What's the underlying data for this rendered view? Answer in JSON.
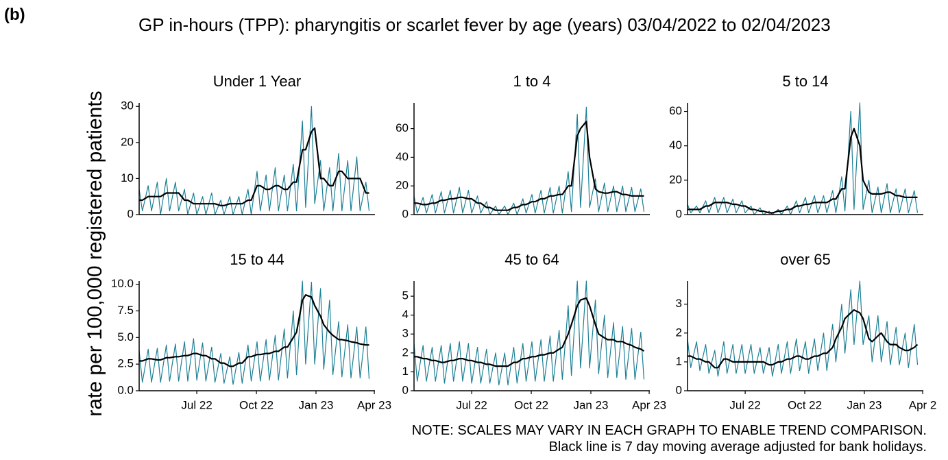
{
  "figure_label": "(b)",
  "title": "GP in-hours (TPP): pharyngitis or scarlet fever by age (years) 03/04/2022 to 02/04/2023",
  "y_label": "rate per 100,000 registered patients",
  "note": "NOTE: SCALES MAY VARY IN EACH GRAPH TO ENABLE TREND COMPARISON.",
  "note2": "Black line is 7 day moving average adjusted for bank holidays.",
  "chart_data": [
    {
      "type": "line",
      "title": "Under 1 Year",
      "x": [
        0,
        5,
        14,
        19,
        28,
        33,
        42,
        47,
        56,
        61,
        70,
        75,
        84,
        89,
        98,
        103,
        112,
        117,
        126,
        131,
        140,
        145,
        154,
        159,
        168,
        173,
        182,
        187,
        196,
        201,
        210,
        215,
        224,
        229,
        238,
        243,
        252,
        257,
        266,
        271,
        280,
        285,
        294,
        299,
        308,
        313,
        322,
        327,
        336,
        341,
        350,
        355
      ],
      "xlim": [
        0,
        364
      ],
      "ylim": [
        0,
        31
      ],
      "yticks": [
        0,
        10,
        20,
        30
      ],
      "series": [
        {
          "color": "#1b7f95",
          "values": [
            7,
            1,
            8,
            1,
            9,
            0,
            10,
            1,
            9,
            1,
            7,
            0,
            6,
            0,
            5,
            0,
            6,
            0,
            4,
            0,
            5,
            0,
            5,
            0,
            7,
            0,
            12,
            1,
            11,
            1,
            13,
            1,
            11,
            1,
            14,
            1,
            26,
            2,
            30,
            3,
            15,
            1,
            13,
            1,
            17,
            1,
            15,
            1,
            16,
            1,
            9,
            1
          ]
        },
        {
          "color": "#000000",
          "values": [
            4,
            4,
            5,
            5,
            5,
            5,
            6,
            6,
            6,
            6,
            4,
            4,
            3,
            3,
            3,
            3,
            3,
            3,
            2.5,
            2.5,
            3,
            3,
            3,
            3,
            4,
            4,
            8,
            8,
            7,
            7,
            8,
            8,
            7,
            7,
            9,
            9,
            18,
            18,
            23,
            24,
            10,
            10,
            8,
            8,
            12,
            12,
            10,
            10,
            10,
            10,
            6,
            6
          ]
        }
      ]
    },
    {
      "type": "line",
      "title": "1 to 4",
      "x": [
        0,
        5,
        14,
        19,
        28,
        33,
        42,
        47,
        56,
        61,
        70,
        75,
        84,
        89,
        98,
        103,
        112,
        117,
        126,
        131,
        140,
        145,
        154,
        159,
        168,
        173,
        182,
        187,
        196,
        201,
        210,
        215,
        224,
        229,
        238,
        243,
        252,
        257,
        266,
        271,
        280,
        285,
        294,
        299,
        308,
        313,
        322,
        327,
        336,
        341,
        350,
        355
      ],
      "xlim": [
        0,
        364
      ],
      "ylim": [
        0,
        78
      ],
      "yticks": [
        0,
        20,
        40,
        60
      ],
      "series": [
        {
          "color": "#1b7f95",
          "values": [
            13,
            1,
            12,
            1,
            14,
            1,
            16,
            1,
            17,
            1,
            19,
            1,
            17,
            1,
            13,
            1,
            9,
            0,
            6,
            0,
            6,
            0,
            8,
            0,
            11,
            1,
            14,
            1,
            17,
            1,
            19,
            1,
            20,
            1,
            30,
            2,
            70,
            5,
            75,
            5,
            25,
            2,
            22,
            2,
            20,
            2,
            20,
            2,
            19,
            2,
            18,
            2
          ]
        },
        {
          "color": "#000000",
          "values": [
            8,
            8,
            7,
            7,
            8,
            8,
            10,
            10,
            11,
            11,
            12,
            12,
            11,
            11,
            8,
            8,
            5,
            5,
            3,
            3,
            3,
            3,
            5,
            5,
            7,
            7,
            9,
            9,
            11,
            11,
            13,
            13,
            14,
            14,
            20,
            20,
            55,
            60,
            65,
            40,
            18,
            16,
            15,
            15,
            16,
            16,
            14,
            14,
            13,
            13,
            13,
            13
          ]
        }
      ]
    },
    {
      "type": "line",
      "title": "5 to 14",
      "x": [
        0,
        5,
        14,
        19,
        28,
        33,
        42,
        47,
        56,
        61,
        70,
        75,
        84,
        89,
        98,
        103,
        112,
        117,
        126,
        131,
        140,
        145,
        154,
        159,
        168,
        173,
        182,
        187,
        196,
        201,
        210,
        215,
        224,
        229,
        238,
        243,
        252,
        257,
        266,
        271,
        280,
        285,
        294,
        299,
        308,
        313,
        322,
        327,
        336,
        341,
        350,
        355
      ],
      "xlim": [
        0,
        364
      ],
      "ylim": [
        0,
        65
      ],
      "yticks": [
        0,
        20,
        40,
        60
      ],
      "series": [
        {
          "color": "#1b7f95",
          "values": [
            6,
            1,
            5,
            1,
            8,
            1,
            10,
            1,
            10,
            1,
            9,
            1,
            8,
            1,
            5,
            0,
            4,
            0,
            2,
            0,
            3,
            0,
            5,
            0,
            8,
            1,
            10,
            1,
            11,
            1,
            11,
            1,
            14,
            1,
            22,
            2,
            60,
            3,
            65,
            3,
            20,
            1,
            16,
            1,
            18,
            1,
            15,
            1,
            15,
            1,
            14,
            1
          ]
        },
        {
          "color": "#000000",
          "values": [
            3,
            3,
            3,
            3,
            5,
            5,
            7,
            7,
            7,
            7,
            6,
            6,
            5,
            5,
            3,
            3,
            2,
            2,
            1,
            1,
            2,
            2,
            3,
            3,
            5,
            5,
            6,
            6,
            7,
            7,
            7,
            7,
            9,
            9,
            15,
            15,
            45,
            50,
            40,
            20,
            13,
            12,
            12,
            12,
            13,
            13,
            11,
            11,
            10,
            10,
            10,
            10
          ]
        }
      ]
    },
    {
      "type": "line",
      "title": "15 to 44",
      "x": [
        0,
        5,
        14,
        19,
        28,
        33,
        42,
        47,
        56,
        61,
        70,
        75,
        84,
        89,
        98,
        103,
        112,
        117,
        126,
        131,
        140,
        145,
        154,
        159,
        168,
        173,
        182,
        187,
        196,
        201,
        210,
        215,
        224,
        229,
        238,
        243,
        252,
        257,
        266,
        271,
        280,
        285,
        294,
        299,
        308,
        313,
        322,
        327,
        336,
        341,
        350,
        355
      ],
      "xlim": [
        0,
        364
      ],
      "ylim": [
        0,
        10.3
      ],
      "yticks": [
        {
          "value": 0,
          "label": "0.0"
        },
        2.5,
        {
          "value": 5,
          "label": "5.0"
        },
        7.5,
        {
          "value": 10,
          "label": "10.0"
        }
      ],
      "xticks": [
        {
          "value": 89,
          "label": "Jul 22"
        },
        {
          "value": 181,
          "label": "Oct 22"
        },
        {
          "value": 273,
          "label": "Jan 23"
        },
        {
          "value": 363,
          "label": "Apr 23"
        }
      ],
      "series": [
        {
          "color": "#1b7f95",
          "values": [
            3.8,
            0.8,
            3.9,
            0.8,
            4.0,
            0.8,
            4.3,
            0.9,
            4.4,
            0.9,
            4.6,
            0.9,
            4.9,
            1,
            4.5,
            0.9,
            4.1,
            0.8,
            3.5,
            0.7,
            3.2,
            0.6,
            3.6,
            0.7,
            4.3,
            0.9,
            4.6,
            0.9,
            4.8,
            1,
            5.2,
            1,
            5.8,
            1.2,
            7.5,
            1.5,
            10.3,
            2.5,
            10.2,
            2.5,
            9.6,
            2,
            8.5,
            1.5,
            6.5,
            1.3,
            6.2,
            1.2,
            6.0,
            1.2,
            6.0,
            1.1
          ]
        },
        {
          "color": "#000000",
          "values": [
            2.8,
            2.8,
            3.0,
            3.0,
            2.9,
            2.9,
            3.1,
            3.1,
            3.2,
            3.2,
            3.3,
            3.3,
            3.5,
            3.5,
            3.3,
            3.3,
            3.0,
            3.0,
            2.6,
            2.6,
            2.3,
            2.3,
            2.6,
            2.6,
            3.2,
            3.2,
            3.4,
            3.4,
            3.5,
            3.5,
            3.7,
            3.7,
            4.1,
            4.1,
            5.0,
            5.5,
            8.5,
            9.0,
            8.8,
            8.0,
            7.0,
            6.2,
            5.5,
            5.2,
            4.8,
            4.8,
            4.7,
            4.6,
            4.5,
            4.4,
            4.3,
            4.3
          ]
        }
      ]
    },
    {
      "type": "line",
      "title": "45 to 64",
      "x": [
        0,
        5,
        14,
        19,
        28,
        33,
        42,
        47,
        56,
        61,
        70,
        75,
        84,
        89,
        98,
        103,
        112,
        117,
        126,
        131,
        140,
        145,
        154,
        159,
        168,
        173,
        182,
        187,
        196,
        201,
        210,
        215,
        224,
        229,
        238,
        243,
        252,
        257,
        266,
        271,
        280,
        285,
        294,
        299,
        308,
        313,
        322,
        327,
        336,
        341,
        350,
        355
      ],
      "xlim": [
        0,
        364
      ],
      "ylim": [
        0,
        5.8
      ],
      "yticks": [
        0,
        1,
        2,
        3,
        4,
        5
      ],
      "xticks": [
        {
          "value": 89,
          "label": "Jul 22"
        },
        {
          "value": 181,
          "label": "Oct 22"
        },
        {
          "value": 273,
          "label": "Jan 23"
        },
        {
          "value": 363,
          "label": "Apr 23"
        }
      ],
      "series": [
        {
          "color": "#1b7f95",
          "values": [
            2.5,
            0.5,
            2.4,
            0.5,
            2.3,
            0.5,
            2.4,
            0.4,
            2.5,
            0.5,
            2.6,
            0.5,
            2.5,
            0.4,
            2.3,
            0.4,
            2.2,
            0.4,
            2.0,
            0.3,
            2.0,
            0.3,
            2.3,
            0.4,
            2.5,
            0.5,
            2.6,
            0.5,
            2.7,
            0.5,
            2.9,
            0.5,
            3.2,
            0.6,
            4.5,
            0.8,
            5.8,
            1.2,
            5.8,
            1.2,
            4.8,
            0.9,
            4.0,
            0.7,
            3.6,
            0.7,
            3.4,
            0.6,
            3.3,
            0.6,
            3.1,
            0.6
          ]
        },
        {
          "color": "#000000",
          "values": [
            1.8,
            1.8,
            1.7,
            1.7,
            1.6,
            1.6,
            1.5,
            1.5,
            1.6,
            1.6,
            1.7,
            1.7,
            1.6,
            1.6,
            1.5,
            1.5,
            1.4,
            1.4,
            1.3,
            1.3,
            1.3,
            1.3,
            1.5,
            1.5,
            1.7,
            1.7,
            1.8,
            1.8,
            1.9,
            1.9,
            2.0,
            2.0,
            2.2,
            2.3,
            3.0,
            3.5,
            4.5,
            4.8,
            4.9,
            4.5,
            3.5,
            3.0,
            2.8,
            2.7,
            2.7,
            2.6,
            2.6,
            2.5,
            2.4,
            2.3,
            2.2,
            2.1
          ]
        }
      ]
    },
    {
      "type": "line",
      "title": "over 65",
      "x": [
        0,
        5,
        14,
        19,
        28,
        33,
        42,
        47,
        56,
        61,
        70,
        75,
        84,
        89,
        98,
        103,
        112,
        117,
        126,
        131,
        140,
        145,
        154,
        159,
        168,
        173,
        182,
        187,
        196,
        201,
        210,
        215,
        224,
        229,
        238,
        243,
        252,
        257,
        266,
        271,
        280,
        285,
        294,
        299,
        308,
        313,
        322,
        327,
        336,
        341,
        350,
        355
      ],
      "xlim": [
        0,
        364
      ],
      "ylim": [
        0,
        3.8
      ],
      "yticks": [
        0,
        1,
        2,
        3
      ],
      "xticks": [
        {
          "value": 89,
          "label": "Jul 22"
        },
        {
          "value": 181,
          "label": "Oct 22"
        },
        {
          "value": 273,
          "label": "Jan 23"
        },
        {
          "value": 363,
          "label": "Apr 2"
        }
      ],
      "series": [
        {
          "color": "#1b7f95",
          "values": [
            1.8,
            0.8,
            1.7,
            0.7,
            1.6,
            0.6,
            1.4,
            0.5,
            1.7,
            0.6,
            1.6,
            0.6,
            1.6,
            0.6,
            1.6,
            0.6,
            1.5,
            0.6,
            1.5,
            0.5,
            1.6,
            0.6,
            1.7,
            0.6,
            1.8,
            0.7,
            1.7,
            0.6,
            1.8,
            0.7,
            2.0,
            0.7,
            2.3,
            1.0,
            3.0,
            1.3,
            3.5,
            1.6,
            3.8,
            1.6,
            2.6,
            1.0,
            2.6,
            1.0,
            2.4,
            0.9,
            2.2,
            0.9,
            2.0,
            0.8,
            2.3,
            0.9
          ]
        },
        {
          "color": "#000000",
          "values": [
            1.2,
            1.2,
            1.1,
            1.1,
            1.0,
            1.0,
            0.8,
            0.8,
            1.1,
            1.1,
            1.0,
            1.0,
            1.0,
            1.0,
            1.0,
            1.0,
            1.0,
            1.0,
            0.9,
            0.9,
            1.0,
            1.0,
            1.1,
            1.1,
            1.2,
            1.2,
            1.1,
            1.1,
            1.2,
            1.2,
            1.3,
            1.3,
            1.5,
            1.8,
            2.2,
            2.5,
            2.7,
            2.8,
            2.7,
            2.5,
            1.8,
            1.7,
            1.9,
            2.0,
            1.7,
            1.6,
            1.6,
            1.5,
            1.4,
            1.4,
            1.5,
            1.6
          ]
        }
      ]
    }
  ]
}
